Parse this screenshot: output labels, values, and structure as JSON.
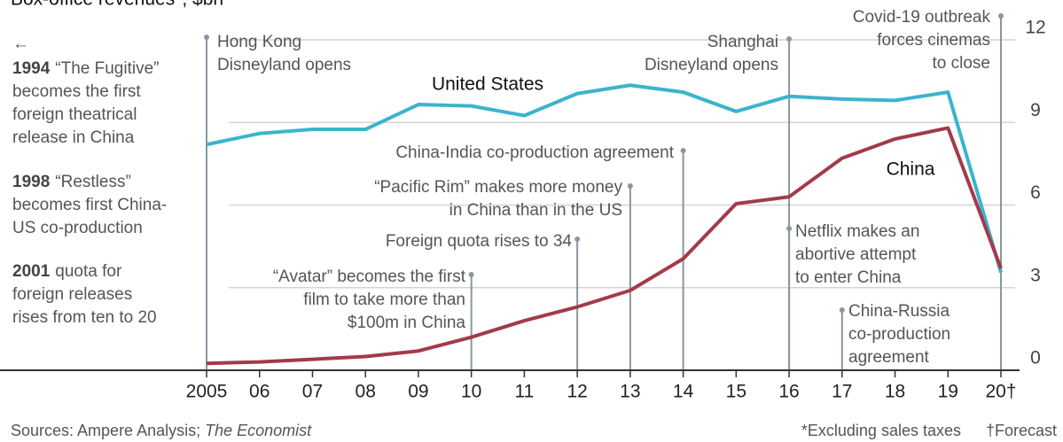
{
  "chart_data": {
    "type": "line",
    "title": "Box-office revenues*, $bn",
    "x": [
      2005,
      2006,
      2007,
      2008,
      2009,
      2010,
      2011,
      2012,
      2013,
      2014,
      2015,
      2016,
      2017,
      2018,
      2019,
      2020
    ],
    "xticks": [
      {
        "value": 2005,
        "label": "2005"
      },
      {
        "value": 2006,
        "label": "06"
      },
      {
        "value": 2007,
        "label": "07"
      },
      {
        "value": 2008,
        "label": "08"
      },
      {
        "value": 2009,
        "label": "09"
      },
      {
        "value": 2010,
        "label": "10"
      },
      {
        "value": 2011,
        "label": "11"
      },
      {
        "value": 2012,
        "label": "12"
      },
      {
        "value": 2013,
        "label": "13"
      },
      {
        "value": 2014,
        "label": "14"
      },
      {
        "value": 2015,
        "label": "15"
      },
      {
        "value": 2016,
        "label": "16"
      },
      {
        "value": 2017,
        "label": "17"
      },
      {
        "value": 2018,
        "label": "18"
      },
      {
        "value": 2019,
        "label": "19"
      },
      {
        "value": 2020,
        "label": "20†"
      }
    ],
    "xlim": [
      2005,
      2020
    ],
    "ylim": [
      0,
      12
    ],
    "yticks": [
      0,
      3,
      6,
      9,
      12
    ],
    "grid": true,
    "series": [
      {
        "name": "United States",
        "color": "#3bb4cc",
        "values": [
          8.2,
          8.6,
          8.75,
          8.75,
          9.65,
          9.6,
          9.25,
          10.05,
          10.35,
          10.1,
          9.4,
          9.95,
          9.85,
          9.8,
          10.1,
          3.55
        ]
      },
      {
        "name": "China",
        "color": "#a33a4a",
        "values": [
          0.25,
          0.3,
          0.4,
          0.5,
          0.7,
          1.2,
          1.8,
          2.3,
          2.9,
          4.05,
          6.05,
          6.3,
          7.7,
          8.4,
          8.8,
          3.7
        ]
      }
    ],
    "annotations": [
      {
        "x": 2005,
        "lines": [
          "Hong Kong",
          "Disneyland opens"
        ]
      },
      {
        "x": 2010,
        "lines": [
          "“Avatar” becomes the first",
          "film to take more than",
          "$100m in China"
        ]
      },
      {
        "x": 2012,
        "lines": [
          "Foreign quota rises to 34"
        ]
      },
      {
        "x": 2013,
        "lines": [
          "“Pacific Rim” makes more money",
          "in China than in the US"
        ]
      },
      {
        "x": 2014,
        "lines": [
          "China-India co-production agreement"
        ]
      },
      {
        "x": 2016,
        "lines": [
          "Shanghai",
          "Disneyland opens"
        ]
      },
      {
        "x": 2016,
        "lines": [
          "Netflix makes an",
          "abortive attempt",
          "to enter China"
        ]
      },
      {
        "x": 2017,
        "lines": [
          "China-Russia",
          "co-production",
          "agreement"
        ]
      },
      {
        "x": 2020,
        "lines": [
          "Covid-19 outbreak",
          "forces cinemas",
          "to close"
        ]
      }
    ],
    "left_notes": {
      "arrow": "←",
      "items": [
        {
          "year": "1994",
          "lines": [
            "“The Fugitive”",
            "becomes the first",
            "foreign theatrical",
            "release in China"
          ]
        },
        {
          "year": "1998",
          "lines": [
            "“Restless”",
            "becomes first China-",
            "US co-production"
          ]
        },
        {
          "year": "2001",
          "lines": [
            "quota for",
            "foreign releases",
            "rises from ten to 20"
          ]
        }
      ]
    },
    "source": [
      "Sources: Ampere Analysis; ",
      "The Economist"
    ],
    "footnotes": [
      "*Excluding sales taxes",
      "†Forecast"
    ]
  }
}
